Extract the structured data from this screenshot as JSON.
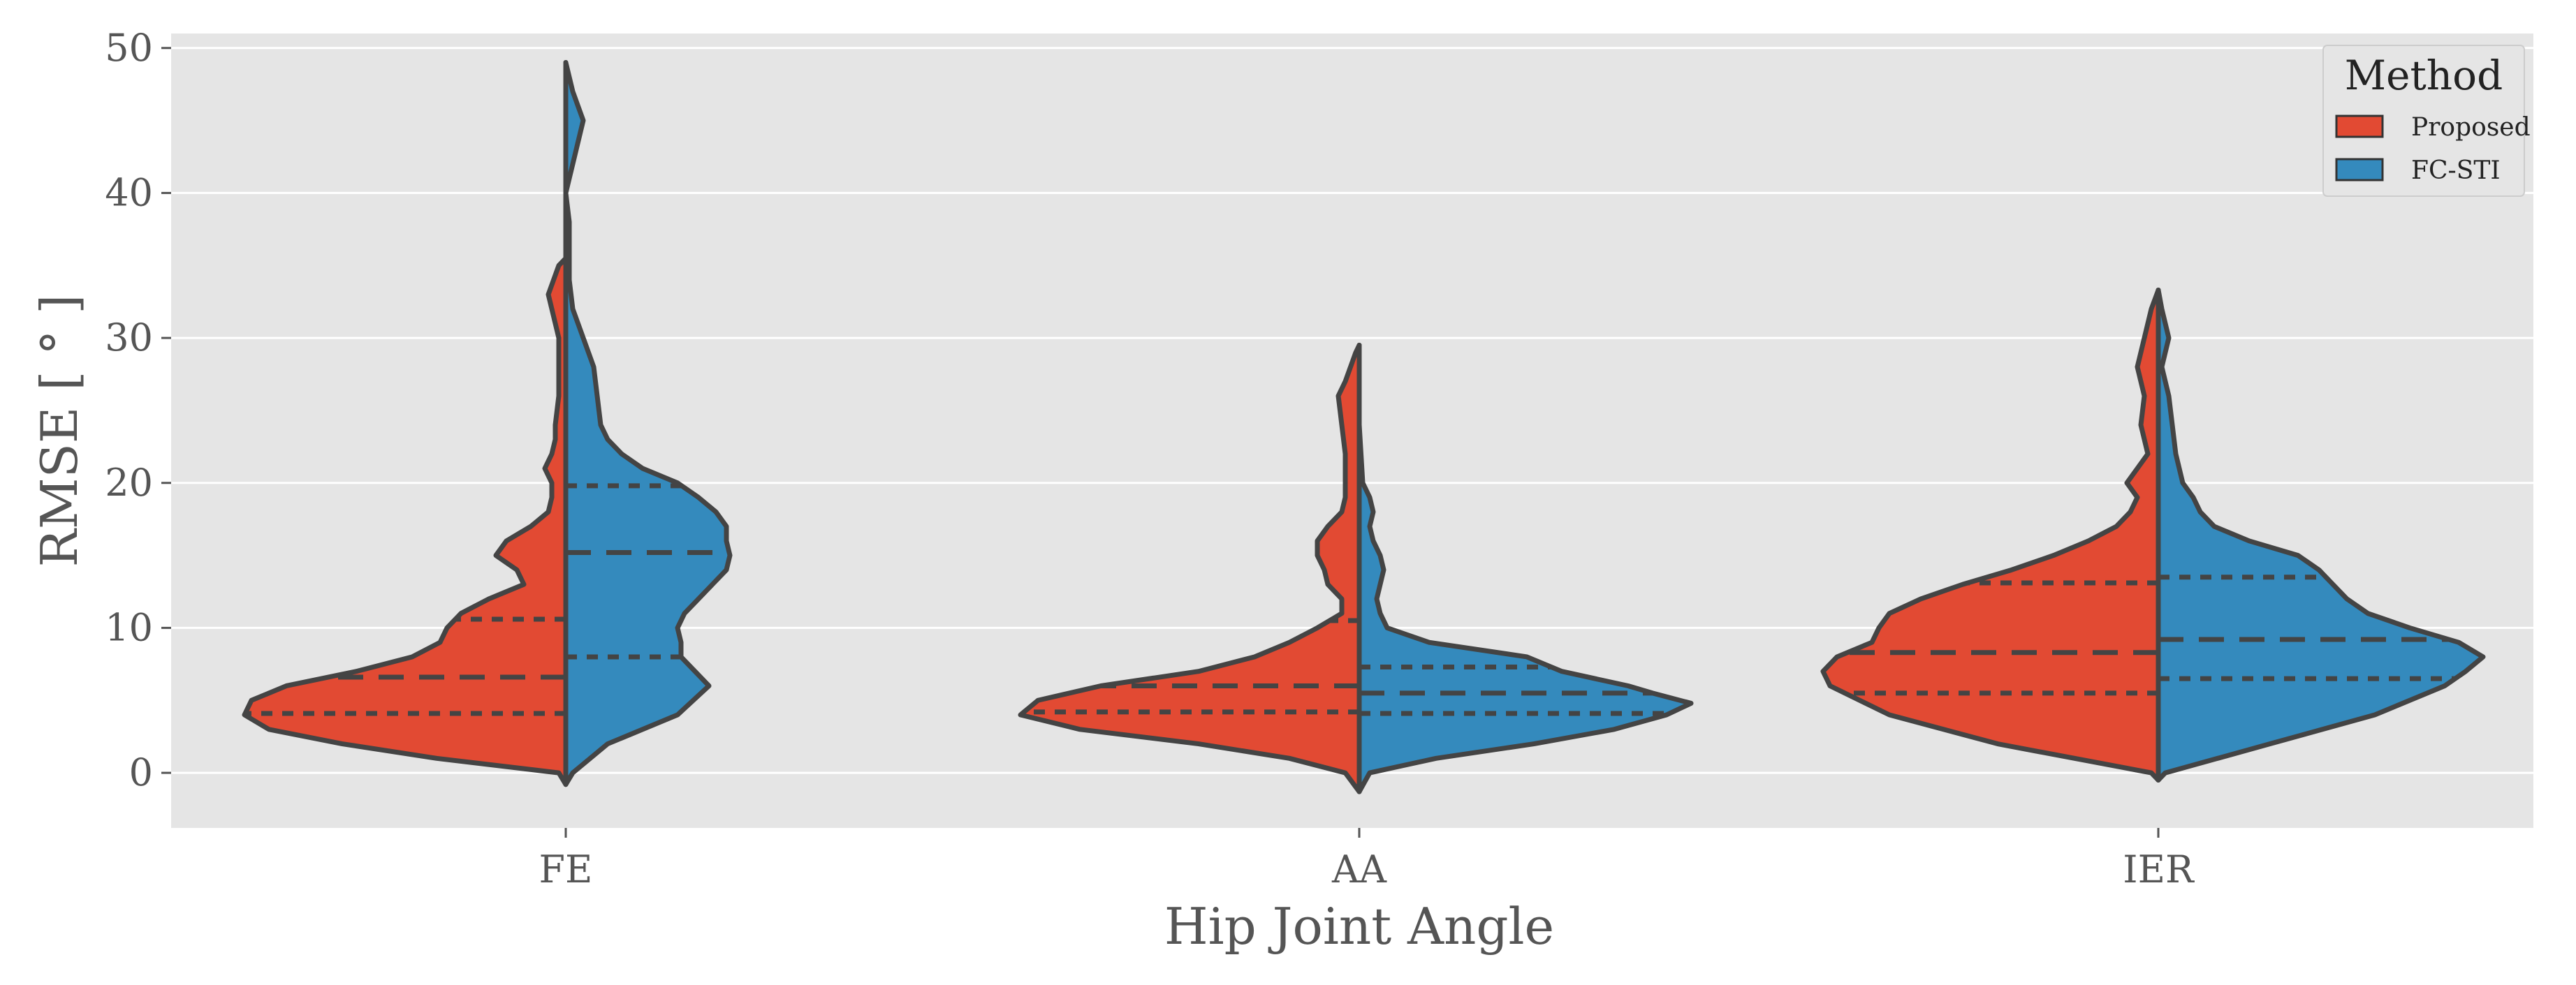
{
  "chart_data": {
    "type": "violin",
    "title": "",
    "xlabel": "Hip Joint Angle",
    "ylabel": "RMSE [ ° ]",
    "categories": [
      "FE",
      "AA",
      "IER"
    ],
    "ylim": [
      -3.8,
      51
    ],
    "yticks": [
      0,
      10,
      20,
      30,
      40,
      50
    ],
    "grid": true,
    "split": true,
    "inner": "quartile",
    "legend": {
      "title": "Method",
      "position": "top-right"
    },
    "series": [
      {
        "name": "Proposed",
        "color": "#E24A33",
        "groups": [
          {
            "category": "FE",
            "min": -0.8,
            "max": 35.5,
            "quartiles": [
              4.1,
              6.6,
              10.6
            ],
            "profile": [
              [
                -0.8,
                0.0
              ],
              [
                0,
                0.02
              ],
              [
                1,
                0.37
              ],
              [
                2,
                0.64
              ],
              [
                3,
                0.85
              ],
              [
                4,
                0.92
              ],
              [
                5,
                0.9
              ],
              [
                6,
                0.8
              ],
              [
                7,
                0.6
              ],
              [
                8,
                0.44
              ],
              [
                9,
                0.36
              ],
              [
                10,
                0.34
              ],
              [
                11,
                0.3
              ],
              [
                12,
                0.22
              ],
              [
                13,
                0.12
              ],
              [
                14,
                0.14
              ],
              [
                15,
                0.2
              ],
              [
                16,
                0.17
              ],
              [
                17,
                0.1
              ],
              [
                18,
                0.05
              ],
              [
                19,
                0.04
              ],
              [
                20,
                0.04
              ],
              [
                21,
                0.06
              ],
              [
                22,
                0.04
              ],
              [
                23,
                0.03
              ],
              [
                24,
                0.03
              ],
              [
                26,
                0.02
              ],
              [
                28,
                0.02
              ],
              [
                30,
                0.02
              ],
              [
                32,
                0.04
              ],
              [
                33,
                0.05
              ],
              [
                35,
                0.02
              ],
              [
                35.5,
                0.0
              ]
            ]
          },
          {
            "category": "AA",
            "min": -1.3,
            "max": 29.5,
            "quartiles": [
              4.2,
              6.0,
              10.5
            ],
            "profile": [
              [
                -1.3,
                0.0
              ],
              [
                0,
                0.04
              ],
              [
                1,
                0.2
              ],
              [
                2,
                0.46
              ],
              [
                3,
                0.8
              ],
              [
                4,
                0.97
              ],
              [
                5,
                0.92
              ],
              [
                6,
                0.74
              ],
              [
                7,
                0.46
              ],
              [
                8,
                0.3
              ],
              [
                9,
                0.2
              ],
              [
                10,
                0.12
              ],
              [
                11,
                0.05
              ],
              [
                12,
                0.05
              ],
              [
                13,
                0.09
              ],
              [
                14,
                0.1
              ],
              [
                15,
                0.12
              ],
              [
                16,
                0.12
              ],
              [
                17,
                0.09
              ],
              [
                18,
                0.05
              ],
              [
                19,
                0.04
              ],
              [
                20,
                0.04
              ],
              [
                22,
                0.04
              ],
              [
                24,
                0.05
              ],
              [
                26,
                0.06
              ],
              [
                27,
                0.04
              ],
              [
                29,
                0.01
              ],
              [
                29.5,
                0.0
              ]
            ]
          },
          {
            "category": "IER",
            "min": -0.5,
            "max": 33.3,
            "quartiles": [
              5.5,
              8.3,
              13.1
            ],
            "profile": [
              [
                -0.5,
                0.0
              ],
              [
                0,
                0.02
              ],
              [
                2,
                0.46
              ],
              [
                4,
                0.77
              ],
              [
                6,
                0.94
              ],
              [
                7,
                0.96
              ],
              [
                8,
                0.92
              ],
              [
                9,
                0.82
              ],
              [
                10,
                0.8
              ],
              [
                11,
                0.77
              ],
              [
                12,
                0.68
              ],
              [
                13,
                0.56
              ],
              [
                14,
                0.42
              ],
              [
                15,
                0.3
              ],
              [
                16,
                0.2
              ],
              [
                17,
                0.12
              ],
              [
                18,
                0.08
              ],
              [
                19,
                0.06
              ],
              [
                20,
                0.09
              ],
              [
                21,
                0.06
              ],
              [
                22,
                0.03
              ],
              [
                24,
                0.05
              ],
              [
                26,
                0.04
              ],
              [
                28,
                0.06
              ],
              [
                30,
                0.04
              ],
              [
                32,
                0.02
              ],
              [
                33.3,
                0.0
              ]
            ]
          }
        ]
      },
      {
        "name": "FC-STI",
        "color": "#348ABD",
        "groups": [
          {
            "category": "FE",
            "min": -0.8,
            "max": 49.0,
            "quartiles": [
              8.0,
              15.2,
              19.8
            ],
            "profile": [
              [
                -0.8,
                0.0
              ],
              [
                0,
                0.02
              ],
              [
                2,
                0.12
              ],
              [
                4,
                0.32
              ],
              [
                6,
                0.41
              ],
              [
                7,
                0.37
              ],
              [
                8,
                0.33
              ],
              [
                9,
                0.33
              ],
              [
                10,
                0.32
              ],
              [
                11,
                0.34
              ],
              [
                12,
                0.38
              ],
              [
                13,
                0.42
              ],
              [
                14,
                0.46
              ],
              [
                15,
                0.47
              ],
              [
                16,
                0.46
              ],
              [
                17,
                0.46
              ],
              [
                18,
                0.43
              ],
              [
                19,
                0.38
              ],
              [
                20,
                0.32
              ],
              [
                21,
                0.22
              ],
              [
                22,
                0.16
              ],
              [
                23,
                0.12
              ],
              [
                24,
                0.1
              ],
              [
                26,
                0.09
              ],
              [
                28,
                0.08
              ],
              [
                30,
                0.05
              ],
              [
                32,
                0.02
              ],
              [
                34,
                0.01
              ],
              [
                36,
                0.01
              ],
              [
                38,
                0.01
              ],
              [
                40,
                0.0
              ],
              [
                42,
                0.02
              ],
              [
                45,
                0.05
              ],
              [
                47,
                0.02
              ],
              [
                49,
                0.0
              ]
            ]
          },
          {
            "category": "AA",
            "min": -1.3,
            "max": 29.5,
            "quartiles": [
              4.1,
              5.5,
              7.3
            ],
            "profile": [
              [
                -1.3,
                0.0
              ],
              [
                0,
                0.03
              ],
              [
                1,
                0.22
              ],
              [
                2,
                0.5
              ],
              [
                3,
                0.73
              ],
              [
                4,
                0.88
              ],
              [
                4.8,
                0.95
              ],
              [
                5.5,
                0.84
              ],
              [
                6,
                0.77
              ],
              [
                7,
                0.58
              ],
              [
                8,
                0.48
              ],
              [
                9,
                0.2
              ],
              [
                10,
                0.08
              ],
              [
                11,
                0.06
              ],
              [
                12,
                0.05
              ],
              [
                13,
                0.06
              ],
              [
                14,
                0.07
              ],
              [
                15,
                0.06
              ],
              [
                16,
                0.04
              ],
              [
                17,
                0.03
              ],
              [
                18,
                0.04
              ],
              [
                19,
                0.03
              ],
              [
                20,
                0.01
              ],
              [
                24,
                0.0
              ],
              [
                29.5,
                0.0
              ]
            ]
          },
          {
            "category": "IER",
            "min": -0.5,
            "max": 33.3,
            "quartiles": [
              6.5,
              9.2,
              13.5
            ],
            "profile": [
              [
                -0.5,
                0.0
              ],
              [
                0,
                0.02
              ],
              [
                2,
                0.32
              ],
              [
                4,
                0.62
              ],
              [
                6,
                0.82
              ],
              [
                7,
                0.88
              ],
              [
                8,
                0.93
              ],
              [
                9,
                0.86
              ],
              [
                10,
                0.72
              ],
              [
                11,
                0.6
              ],
              [
                12,
                0.54
              ],
              [
                13,
                0.5
              ],
              [
                14,
                0.46
              ],
              [
                15,
                0.4
              ],
              [
                16,
                0.26
              ],
              [
                17,
                0.16
              ],
              [
                18,
                0.12
              ],
              [
                19,
                0.1
              ],
              [
                20,
                0.07
              ],
              [
                22,
                0.05
              ],
              [
                24,
                0.04
              ],
              [
                26,
                0.03
              ],
              [
                28,
                0.01
              ],
              [
                30,
                0.03
              ],
              [
                32,
                0.01
              ],
              [
                33.3,
                0.0
              ]
            ]
          }
        ]
      }
    ]
  }
}
